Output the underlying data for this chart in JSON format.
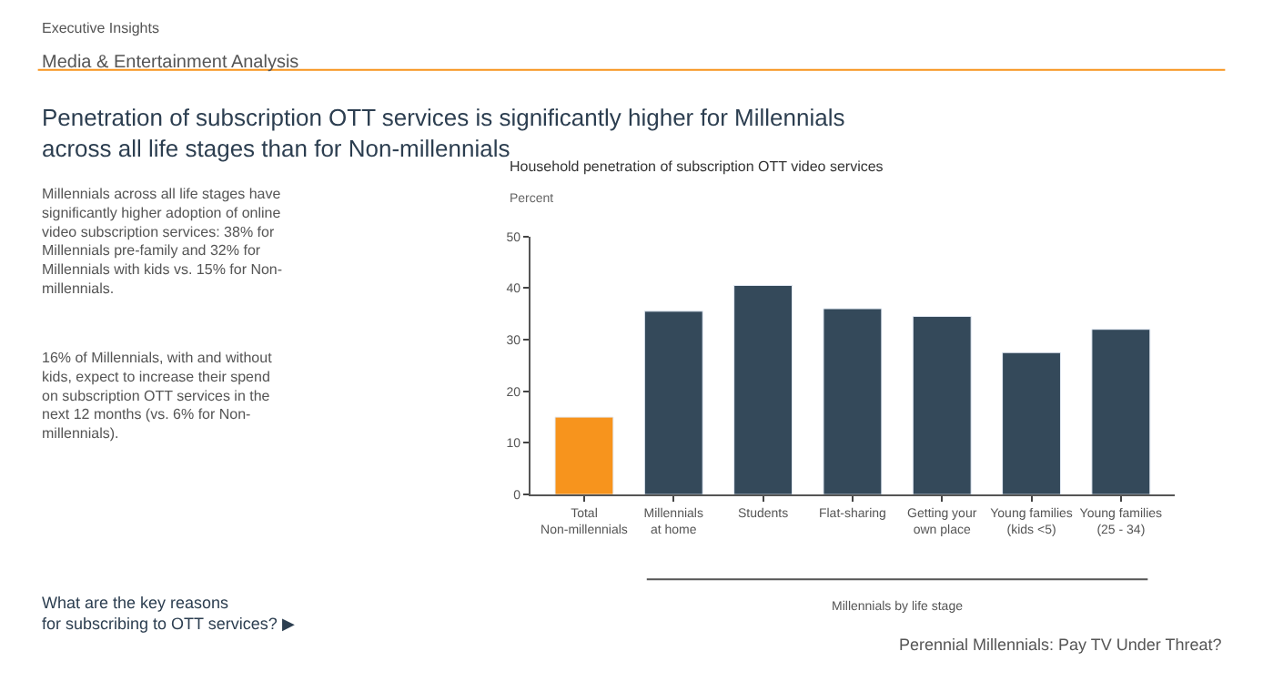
{
  "chart_data": {
    "type": "bar",
    "title": "Household penetration of subscription OTT video services",
    "ylabel": "Percent",
    "xlabel": "Millennials by life stage",
    "categories": [
      "Total\nNon-millennials",
      "Millennials\nat home",
      "Students",
      "Flat-sharing",
      "Getting your\nown place",
      "Young families\n(kids <5)",
      "Young families\n(25 - 34)"
    ],
    "values": [
      15,
      35.5,
      40.5,
      36,
      34.5,
      27.5,
      32
    ],
    "colors": [
      "#f7941d",
      "#34495a",
      "#34495a",
      "#34495a",
      "#34495a",
      "#34495a",
      "#34495a"
    ],
    "ylim": [
      0,
      50
    ],
    "yticks": [
      0,
      10,
      20,
      30,
      40,
      50
    ],
    "annotations": [
      "Executive Insights",
      "Media & Entertainment Analysis",
      "Penetration of subscription OTT services is significantly higher for Millennials\nacross all life stages than for Non-millennials",
      "Millennials across all life stages have\nsignificantly higher adoption of online\nvideo subscription services: 38% for\nMillennials pre-family and 32% for\nMillennials with kids vs. 15% for Non-\nmillennials.",
      "16% of Millennials, with and without\nkids, expect to increase their spend\non subscription OTT services in the\nnext 12 months (vs. 6% for Non-\nmillennials).",
      "What are the key reasons\nfor subscribing to OTT services? ▶",
      "Perennial Millennials: Pay TV Under Threat?"
    ]
  }
}
